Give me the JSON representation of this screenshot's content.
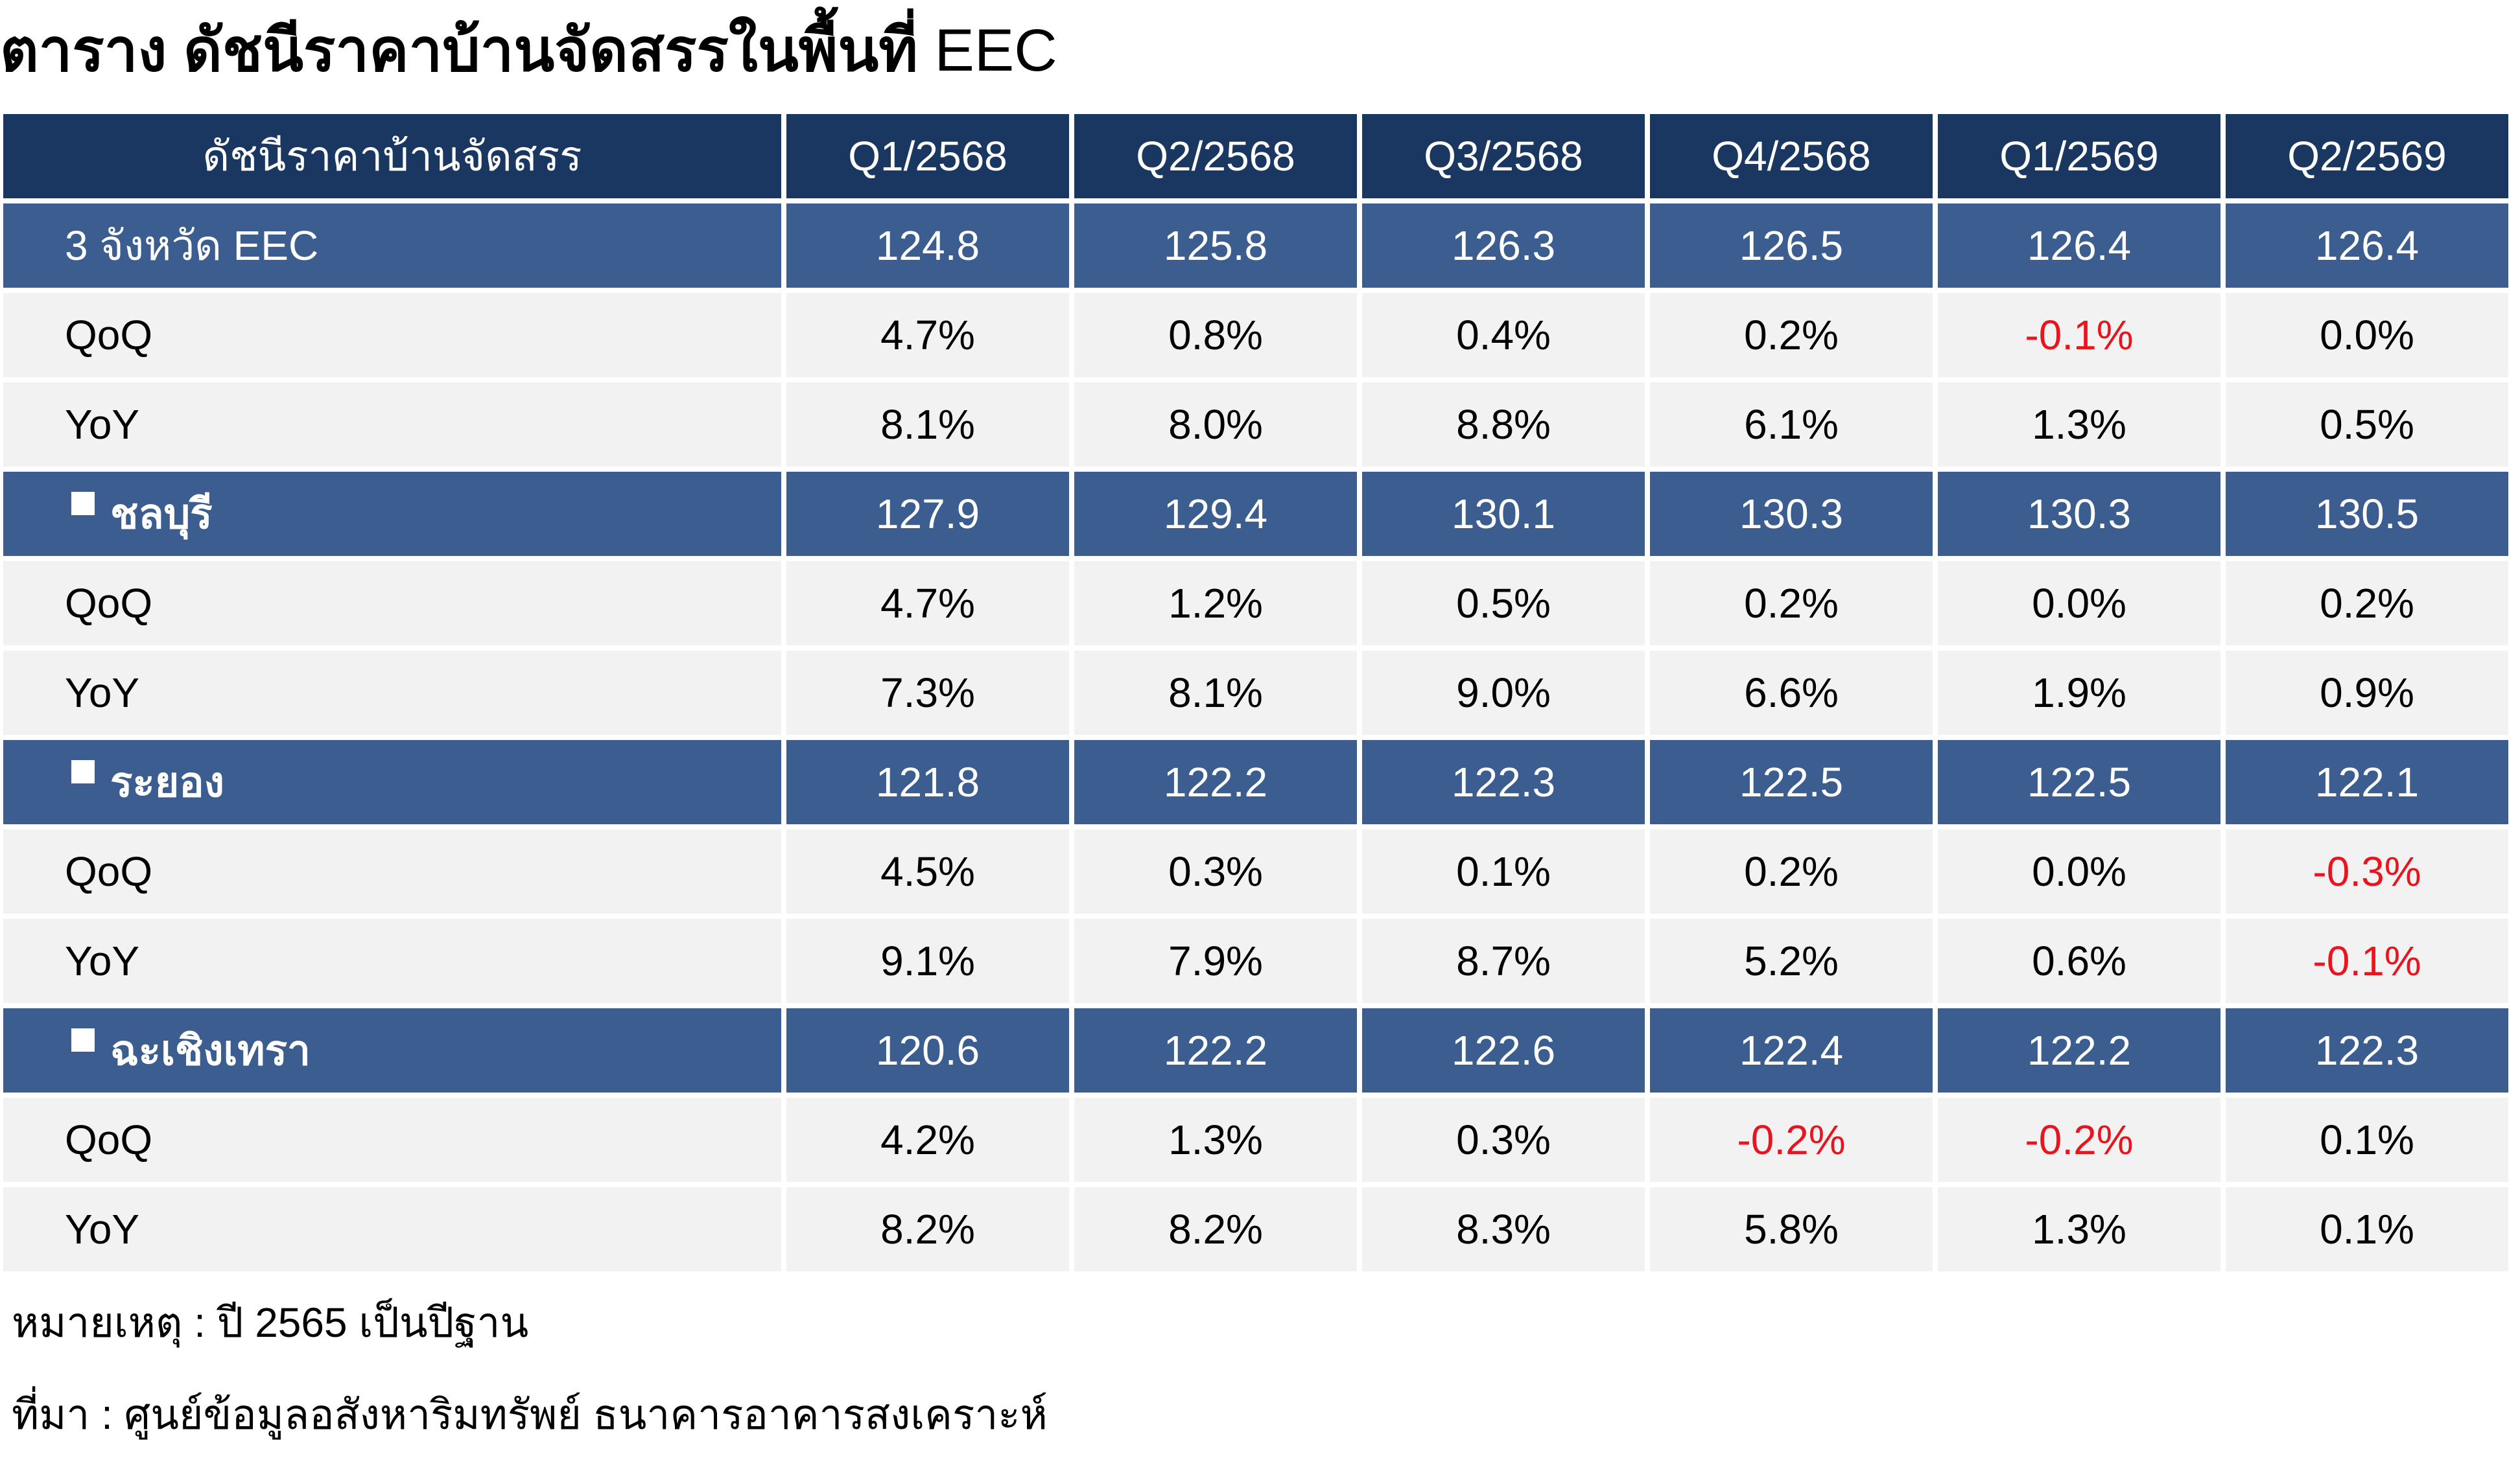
{
  "title": {
    "main": "ตาราง ดัชนีราคาบ้านจัดสรรในพื้นที่",
    "suffix": "EEC"
  },
  "table": {
    "header": [
      "ดัชนีราคาบ้านจัดสรร",
      "Q1/2568",
      "Q2/2568",
      "Q3/2568",
      "Q4/2568",
      "Q1/2569",
      "Q2/2569"
    ],
    "groups": [
      {
        "name": "3 จังหวัด  EEC",
        "marker": false,
        "index": [
          "124.8",
          "125.8",
          "126.3",
          "126.5",
          "126.4",
          "126.4"
        ],
        "qoq_label": "QoQ",
        "qoq": [
          "4.7%",
          "0.8%",
          "0.4%",
          "0.2%",
          "-0.1%",
          "0.0%"
        ],
        "yoy_label": "YoY",
        "yoy": [
          "8.1%",
          "8.0%",
          "8.8%",
          "6.1%",
          "1.3%",
          "0.5%"
        ]
      },
      {
        "name": "ชลบุรี",
        "marker": true,
        "index": [
          "127.9",
          "129.4",
          "130.1",
          "130.3",
          "130.3",
          "130.5"
        ],
        "qoq_label": "QoQ",
        "qoq": [
          "4.7%",
          "1.2%",
          "0.5%",
          "0.2%",
          "0.0%",
          "0.2%"
        ],
        "yoy_label": "YoY",
        "yoy": [
          "7.3%",
          "8.1%",
          "9.0%",
          "6.6%",
          "1.9%",
          "0.9%"
        ]
      },
      {
        "name": "ระยอง",
        "marker": true,
        "index": [
          "121.8",
          "122.2",
          "122.3",
          "122.5",
          "122.5",
          "122.1"
        ],
        "qoq_label": "QoQ",
        "qoq": [
          "4.5%",
          "0.3%",
          "0.1%",
          "0.2%",
          "0.0%",
          "-0.3%"
        ],
        "yoy_label": "YoY",
        "yoy": [
          "9.1%",
          "7.9%",
          "8.7%",
          "5.2%",
          "0.6%",
          "-0.1%"
        ]
      },
      {
        "name": "ฉะเชิงเทรา",
        "marker": true,
        "index": [
          "120.6",
          "122.2",
          "122.6",
          "122.4",
          "122.2",
          "122.3"
        ],
        "qoq_label": "QoQ",
        "qoq": [
          "4.2%",
          "1.3%",
          "0.3%",
          "-0.2%",
          "-0.2%",
          "0.1%"
        ],
        "yoy_label": "YoY",
        "yoy": [
          "8.2%",
          "8.2%",
          "8.3%",
          "5.8%",
          "1.3%",
          "0.1%"
        ]
      }
    ]
  },
  "notes": {
    "remark": "หมายเหตุ : ปี 2565 เป็นปีฐาน",
    "source": "ที่มา : ศูนย์ข้อมูลอสังหาริมทรัพย์ ธนาคารอาคารสงเคราะห์"
  },
  "colors": {
    "header": "#1a3762",
    "band": "#3b5d8f",
    "row": "#f2f2f2",
    "negative": "#e8141e"
  }
}
